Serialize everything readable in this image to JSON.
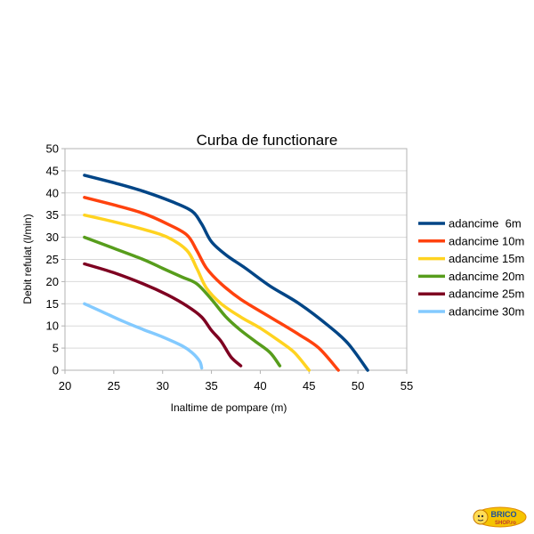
{
  "chart_data": {
    "type": "line",
    "title": "Curba de functionare",
    "xlabel": "Inaltime de pompare (m)",
    "ylabel": "Debit refulat (l/min)",
    "xlim": [
      20,
      55
    ],
    "ylim": [
      0,
      50
    ],
    "xticks": [
      20,
      25,
      30,
      35,
      40,
      45,
      50,
      55
    ],
    "yticks": [
      0,
      5,
      10,
      15,
      20,
      25,
      30,
      35,
      40,
      45,
      50
    ],
    "grid": true,
    "legend_position": "right",
    "series": [
      {
        "name": "adancime  6m",
        "color": "#004586",
        "points": [
          [
            22,
            44
          ],
          [
            25,
            42.3
          ],
          [
            28,
            40.4
          ],
          [
            31,
            38
          ],
          [
            33,
            35.9
          ],
          [
            34,
            33
          ],
          [
            35,
            29
          ],
          [
            36.5,
            26
          ],
          [
            38.5,
            23
          ],
          [
            41,
            19
          ],
          [
            44,
            15
          ],
          [
            47,
            10
          ],
          [
            49,
            6
          ],
          [
            51,
            0
          ]
        ]
      },
      {
        "name": "adancime 10m",
        "color": "#ff420e",
        "points": [
          [
            22,
            39
          ],
          [
            25,
            37.3
          ],
          [
            28,
            35.4
          ],
          [
            30.5,
            33
          ],
          [
            32.5,
            30.5
          ],
          [
            33.5,
            27
          ],
          [
            34.5,
            23
          ],
          [
            36,
            19.5
          ],
          [
            38,
            16
          ],
          [
            41,
            12
          ],
          [
            44,
            8
          ],
          [
            46,
            5
          ],
          [
            48,
            0
          ]
        ]
      },
      {
        "name": "adancime 15m",
        "color": "#ffd320",
        "points": [
          [
            22,
            35
          ],
          [
            25,
            33.5
          ],
          [
            28,
            31.8
          ],
          [
            30.5,
            30
          ],
          [
            32.5,
            27
          ],
          [
            33.5,
            23
          ],
          [
            34.5,
            18.5
          ],
          [
            36,
            15
          ],
          [
            38,
            12
          ],
          [
            40,
            9.5
          ],
          [
            42,
            6.5
          ],
          [
            43.5,
            4
          ],
          [
            45,
            0
          ]
        ]
      },
      {
        "name": "adancime 20m",
        "color": "#579d1c",
        "points": [
          [
            22,
            30
          ],
          [
            25,
            27.5
          ],
          [
            28,
            25
          ],
          [
            30,
            23
          ],
          [
            32,
            21
          ],
          [
            33.5,
            19.5
          ],
          [
            35,
            16
          ],
          [
            36.5,
            12
          ],
          [
            38,
            9
          ],
          [
            39.5,
            6.5
          ],
          [
            41,
            4
          ],
          [
            42,
            1
          ]
        ]
      },
      {
        "name": "adancime 25m",
        "color": "#7e0021",
        "points": [
          [
            22,
            24
          ],
          [
            25,
            22
          ],
          [
            28,
            19.5
          ],
          [
            30.5,
            17
          ],
          [
            32.5,
            14.5
          ],
          [
            34,
            12
          ],
          [
            35,
            9
          ],
          [
            36,
            6.5
          ],
          [
            37,
            3
          ],
          [
            38,
            1
          ]
        ]
      },
      {
        "name": "adancime 30m",
        "color": "#83caff",
        "points": [
          [
            22,
            15
          ],
          [
            24,
            13
          ],
          [
            26,
            11
          ],
          [
            28,
            9.2
          ],
          [
            30,
            7.5
          ],
          [
            32,
            5.5
          ],
          [
            33,
            4
          ],
          [
            33.8,
            2
          ],
          [
            34,
            0.5
          ]
        ]
      }
    ]
  },
  "logo": {
    "line1": "BRICO",
    "line2": "SHOP.ro"
  }
}
